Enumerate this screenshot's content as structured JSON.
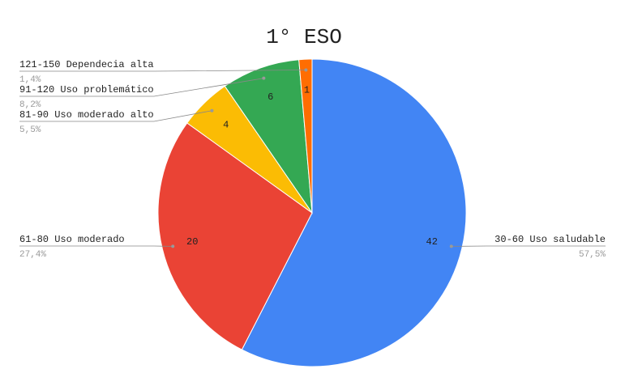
{
  "chart_data": {
    "type": "pie",
    "title": "1° ESO",
    "categories": [
      "30-60 Uso saludable",
      "61-80 Uso moderado",
      "81-90 Uso moderado alto",
      "91-120 Uso problemático",
      "121-150 Dependecia alta"
    ],
    "values": [
      42,
      20,
      4,
      6,
      1
    ],
    "percent_labels": [
      "57,5%",
      "27,4%",
      "5,5%",
      "8,2%",
      "1,4%"
    ],
    "colors": [
      "#4285f4",
      "#ea4335",
      "#fbbc04",
      "#34a853",
      "#ff6d01"
    ]
  }
}
